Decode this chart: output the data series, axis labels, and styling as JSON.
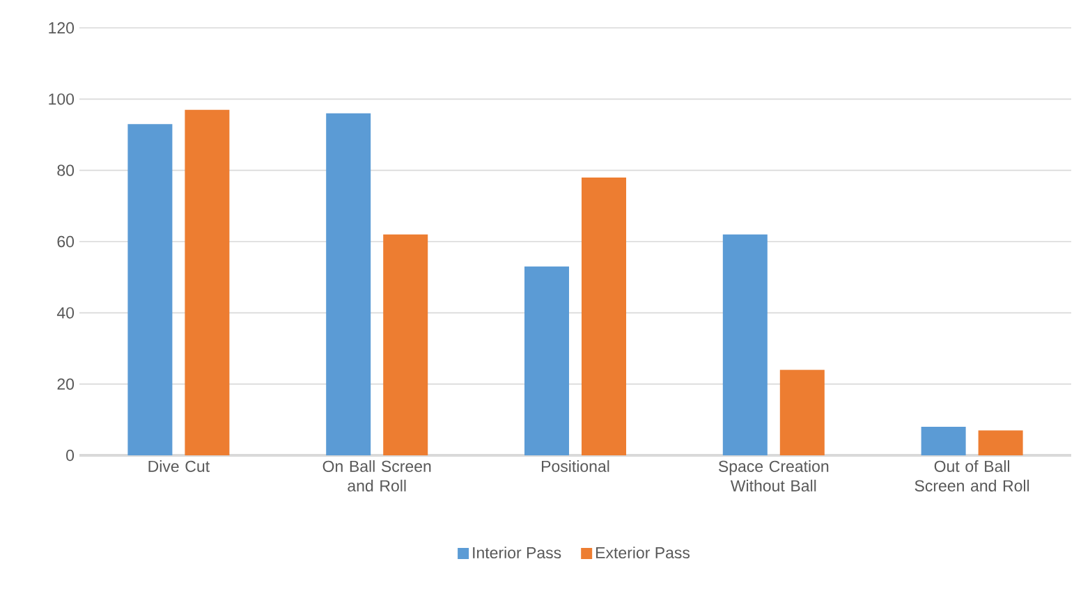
{
  "chart_data": {
    "type": "bar",
    "categories": [
      "Dive Cut",
      "On Ball Screen and Roll",
      "Positional",
      "Space Creation Without Ball",
      "Out of Ball Screen and Roll"
    ],
    "series": [
      {
        "name": "Interior Pass",
        "color": "#5b9bd5",
        "values": [
          93,
          96,
          53,
          62,
          8
        ]
      },
      {
        "name": "Exterior Pass",
        "color": "#ed7d31",
        "values": [
          97,
          62,
          78,
          24,
          7
        ]
      }
    ],
    "ylim": [
      0,
      120
    ],
    "yticks": [
      0,
      20,
      40,
      60,
      80,
      100,
      120
    ],
    "grid": "y",
    "legend": "bottom"
  }
}
